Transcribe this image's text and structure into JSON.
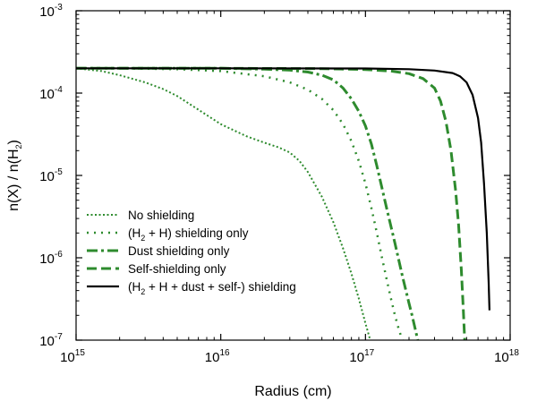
{
  "chart_data": {
    "type": "line",
    "xlabel": "Radius (cm)",
    "ylabel": {
      "pre": "n(X) / n(H",
      "sub": "2",
      "post": ")"
    },
    "xscale": "log",
    "yscale": "log",
    "xlim": [
      1000000000000000.0,
      1e+18
    ],
    "ylim": [
      1e-07,
      0.001
    ],
    "grid": false,
    "legend_position": "bottom-left",
    "xticks": [
      {
        "base": "10",
        "exp": "15",
        "value": 1000000000000000.0
      },
      {
        "base": "10",
        "exp": "16",
        "value": 1e+16
      },
      {
        "base": "10",
        "exp": "17",
        "value": 1e+17
      },
      {
        "base": "10",
        "exp": "18",
        "value": 1e+18
      }
    ],
    "yticks": [
      {
        "base": "10",
        "exp": "-7",
        "value": 1e-07
      },
      {
        "base": "10",
        "exp": "-6",
        "value": 1e-06
      },
      {
        "base": "10",
        "exp": "-5",
        "value": 1e-05
      },
      {
        "base": "10",
        "exp": "-4",
        "value": 0.0001
      },
      {
        "base": "10",
        "exp": "-3",
        "value": 0.001
      }
    ],
    "series": [
      {
        "name": "No shielding",
        "label_parts": [
          {
            "t": "No shielding"
          }
        ],
        "color": "#2e8b2e",
        "dash": "2,2.5",
        "width": 2,
        "x": [
          1000000000000000.0,
          1500000000000000.0,
          2000000000000000.0,
          3000000000000000.0,
          4000000000000000.0,
          5000000000000000.0,
          7000000000000000.0,
          1e+16,
          1.5e+16,
          2e+16,
          2.5e+16,
          3e+16,
          3.5e+16,
          4e+16,
          5e+16,
          6e+16,
          7e+16,
          8e+16,
          9e+16,
          1e+17,
          1.08e+17
        ],
        "y": [
          0.0002,
          0.000185,
          0.000165,
          0.000135,
          0.000112,
          9.2e-05,
          6.3e-05,
          4.2e-05,
          3e-05,
          2.5e-05,
          2.2e-05,
          1.9e-05,
          1.5e-05,
          1.1e-05,
          5.5e-06,
          2.7e-06,
          1.3e-06,
          6.4e-07,
          3.2e-07,
          1.6e-07,
          1e-07
        ]
      },
      {
        "name": "(H2 + H) shielding only",
        "label_parts": [
          {
            "t": "(H"
          },
          {
            "t": "2",
            "sub": true
          },
          {
            "t": " + H) shielding only"
          }
        ],
        "color": "#2e8b2e",
        "dash": "2,6",
        "width": 2.5,
        "x": [
          1000000000000000.0,
          2000000000000000.0,
          5000000000000000.0,
          1e+16,
          2e+16,
          3e+16,
          4e+16,
          5e+16,
          6e+16,
          7e+16,
          8e+16,
          9e+16,
          1e+17,
          1.1e+17,
          1.2e+17,
          1.3e+17,
          1.4e+17,
          1.5e+17,
          1.6e+17,
          1.7e+17,
          1.8e+17
        ],
        "y": [
          0.0002,
          0.0002,
          0.000195,
          0.000185,
          0.00016,
          0.000135,
          0.00011,
          8.5e-05,
          6.2e-05,
          4.2e-05,
          2.6e-05,
          1.5e-05,
          8e-06,
          4e-06,
          2e-06,
          1e-06,
          5.5e-07,
          3.2e-07,
          2e-07,
          1.35e-07,
          1e-07
        ]
      },
      {
        "name": "Dust shielding only",
        "label_parts": [
          {
            "t": "Dust shielding only"
          }
        ],
        "color": "#2e8b2e",
        "dash": "12,4,3,4",
        "width": 3,
        "x": [
          1000000000000000.0,
          1e+16,
          2e+16,
          3e+16,
          4e+16,
          5e+16,
          6e+16,
          7e+16,
          8e+16,
          9e+16,
          1e+17,
          1.1e+17,
          1.2e+17,
          1.4e+17,
          1.6e+17,
          1.8e+17,
          2e+17,
          2.1e+17,
          2.2e+17,
          2.3e+17
        ],
        "y": [
          0.0002,
          0.0002,
          0.000195,
          0.00019,
          0.00018,
          0.000165,
          0.000145,
          0.000115,
          8.5e-05,
          6e-05,
          4e-05,
          2.4e-05,
          1.3e-05,
          4e-06,
          1.5e-06,
          6e-07,
          2.8e-07,
          2e-07,
          1.4e-07,
          1e-07
        ]
      },
      {
        "name": "Self-shielding only",
        "label_parts": [
          {
            "t": "Self-shielding only"
          }
        ],
        "color": "#2e8b2e",
        "dash": "11,5",
        "width": 3,
        "x": [
          1000000000000000.0,
          1e+16,
          5e+16,
          1e+17,
          1.5e+17,
          2e+17,
          2.5e+17,
          3e+17,
          3.3e+17,
          3.6e+17,
          3.9e+17,
          4.2e+17,
          4.4e+17,
          4.6e+17,
          4.75e+17,
          4.85e+17
        ],
        "y": [
          0.0002,
          0.0002,
          0.000198,
          0.000193,
          0.000185,
          0.000172,
          0.00015,
          0.000115,
          8e-05,
          4.5e-05,
          2e-05,
          6.5e-06,
          2.5e-06,
          7e-07,
          2.3e-07,
          1e-07
        ]
      },
      {
        "name": "(H2 + H + dust + self-) shielding",
        "label_parts": [
          {
            "t": "(H"
          },
          {
            "t": "2",
            "sub": true
          },
          {
            "t": " + H + dust + self-) shielding"
          }
        ],
        "color": "#000000",
        "dash": "",
        "width": 2.2,
        "x": [
          1000000000000000.0,
          1e+16,
          1e+17,
          2e+17,
          3e+17,
          4e+17,
          4.5e+17,
          5e+17,
          5.5e+17,
          6e+17,
          6.3e+17,
          6.6e+17,
          6.9e+17,
          7.1e+17,
          7.2e+17
        ],
        "y": [
          0.0002,
          0.0002,
          0.000199,
          0.000195,
          0.000188,
          0.000175,
          0.00016,
          0.000135,
          9.5e-05,
          5e-05,
          2.5e-05,
          8e-06,
          2e-06,
          5e-07,
          2.3e-07
        ]
      }
    ]
  }
}
